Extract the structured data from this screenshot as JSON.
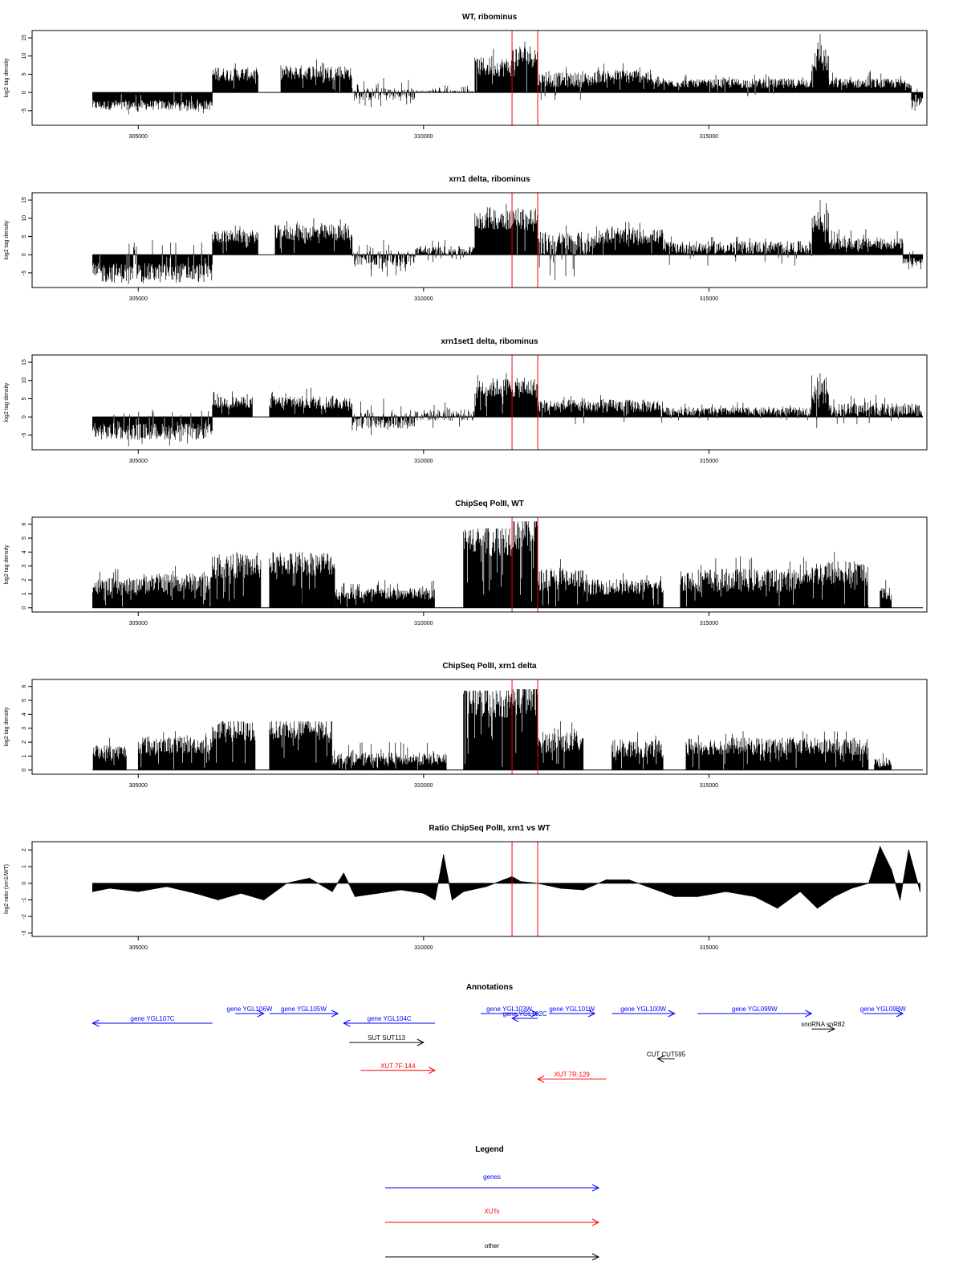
{
  "chart_data": [
    {
      "type": "bar",
      "title": "WT, ribominus",
      "ylabel": "log2 tag density",
      "xlim": [
        303500,
        318800
      ],
      "ylim": [
        -9,
        17
      ],
      "xticks": [
        305000,
        310000,
        315000
      ],
      "yticks": [
        -5,
        0,
        5,
        10,
        15
      ],
      "red_lines_x": [
        311550,
        312000
      ],
      "segments": [
        {
          "x0": 304200,
          "x1": 306300,
          "min": -6,
          "max": 0,
          "base": -3.5
        },
        {
          "x0": 306300,
          "x1": 307100,
          "min": 0,
          "max": 8,
          "base": 5
        },
        {
          "x0": 307500,
          "x1": 308750,
          "min": 0,
          "max": 9,
          "base": 5.5
        },
        {
          "x0": 308750,
          "x1": 309850,
          "min": -4,
          "max": 4,
          "base": -0.5
        },
        {
          "x0": 309850,
          "x1": 310900,
          "min": 0,
          "max": 2,
          "base": 0.2
        },
        {
          "x0": 310900,
          "x1": 311550,
          "min": 0,
          "max": 12,
          "base": 7
        },
        {
          "x0": 311550,
          "x1": 312000,
          "min": 0,
          "max": 14,
          "base": 10
        },
        {
          "x0": 312000,
          "x1": 313000,
          "min": -2,
          "max": 7,
          "base": 3.5
        },
        {
          "x0": 313000,
          "x1": 314000,
          "min": 0,
          "max": 8,
          "base": 4.5
        },
        {
          "x0": 314000,
          "x1": 315200,
          "min": 0,
          "max": 5,
          "base": 2.5
        },
        {
          "x0": 315200,
          "x1": 316800,
          "min": -1,
          "max": 5,
          "base": 2.5
        },
        {
          "x0": 316800,
          "x1": 317100,
          "min": 0,
          "max": 16,
          "base": 9
        },
        {
          "x0": 317100,
          "x1": 318550,
          "min": 0,
          "max": 6,
          "base": 2.5
        },
        {
          "x0": 318550,
          "x1": 318750,
          "min": -5,
          "max": 1,
          "base": -2.5
        }
      ]
    },
    {
      "type": "bar",
      "title": "xrn1 delta, ribominus",
      "ylabel": "log2 tag density",
      "xlim": [
        303500,
        318800
      ],
      "ylim": [
        -9,
        17
      ],
      "xticks": [
        305000,
        310000,
        315000
      ],
      "yticks": [
        -5,
        0,
        5,
        10,
        15
      ],
      "red_lines_x": [
        311550,
        312000
      ],
      "segments": [
        {
          "x0": 304200,
          "x1": 306300,
          "min": -8,
          "max": 4,
          "base": -5
        },
        {
          "x0": 306300,
          "x1": 307100,
          "min": 0,
          "max": 8,
          "base": 5
        },
        {
          "x0": 307400,
          "x1": 308750,
          "min": 0,
          "max": 10,
          "base": 6
        },
        {
          "x0": 308750,
          "x1": 309850,
          "min": -6,
          "max": 4,
          "base": -1
        },
        {
          "x0": 309850,
          "x1": 310900,
          "min": -2,
          "max": 4,
          "base": 1
        },
        {
          "x0": 310900,
          "x1": 312000,
          "min": 0,
          "max": 14,
          "base": 10
        },
        {
          "x0": 312000,
          "x1": 313000,
          "min": -7,
          "max": 8,
          "base": 3
        },
        {
          "x0": 313000,
          "x1": 314200,
          "min": 0,
          "max": 9,
          "base": 5
        },
        {
          "x0": 314200,
          "x1": 316800,
          "min": -3,
          "max": 5,
          "base": 2
        },
        {
          "x0": 316800,
          "x1": 317100,
          "min": 0,
          "max": 15,
          "base": 9
        },
        {
          "x0": 317100,
          "x1": 318400,
          "min": 0,
          "max": 7,
          "base": 3
        },
        {
          "x0": 318400,
          "x1": 318750,
          "min": -4,
          "max": 1,
          "base": -2
        }
      ]
    },
    {
      "type": "bar",
      "title": "xrn1set1 delta, ribominus",
      "ylabel": "log2 tag density",
      "xlim": [
        303500,
        318800
      ],
      "ylim": [
        -9,
        17
      ],
      "xticks": [
        305000,
        310000,
        315000
      ],
      "yticks": [
        -5,
        0,
        5,
        10,
        15
      ],
      "red_lines_x": [
        311550,
        312000
      ],
      "segments": [
        {
          "x0": 304200,
          "x1": 306300,
          "min": -8,
          "max": 2,
          "base": -4
        },
        {
          "x0": 306300,
          "x1": 307000,
          "min": 0,
          "max": 7,
          "base": 4
        },
        {
          "x0": 307300,
          "x1": 308750,
          "min": 0,
          "max": 8,
          "base": 4
        },
        {
          "x0": 308750,
          "x1": 309850,
          "min": -5,
          "max": 5,
          "base": -1
        },
        {
          "x0": 309850,
          "x1": 310900,
          "min": -3,
          "max": 4,
          "base": 0.5
        },
        {
          "x0": 310900,
          "x1": 312000,
          "min": 0,
          "max": 12,
          "base": 8
        },
        {
          "x0": 312000,
          "x1": 314200,
          "min": -2,
          "max": 6,
          "base": 3
        },
        {
          "x0": 314200,
          "x1": 316800,
          "min": -1,
          "max": 4,
          "base": 1.5
        },
        {
          "x0": 316800,
          "x1": 317100,
          "min": -3,
          "max": 12,
          "base": 7
        },
        {
          "x0": 317100,
          "x1": 318750,
          "min": -2,
          "max": 6,
          "base": 2
        }
      ]
    },
    {
      "type": "bar",
      "title": "ChipSeq PolII, WT",
      "ylabel": "log2 tag density",
      "xlim": [
        303500,
        318800
      ],
      "ylim": [
        -0.3,
        6.5
      ],
      "xticks": [
        305000,
        310000,
        315000
      ],
      "yticks": [
        0,
        1,
        2,
        3,
        4,
        5,
        6
      ],
      "red_lines_x": [
        311550,
        312000
      ],
      "segments": [
        {
          "x0": 304200,
          "x1": 305000,
          "min": 0,
          "max": 2.8,
          "base": 1.5
        },
        {
          "x0": 305000,
          "x1": 306300,
          "min": 0,
          "max": 3,
          "base": 1.8
        },
        {
          "x0": 306300,
          "x1": 307150,
          "min": 0,
          "max": 4,
          "base": 3
        },
        {
          "x0": 307300,
          "x1": 308450,
          "min": 0,
          "max": 4,
          "base": 3.2
        },
        {
          "x0": 308450,
          "x1": 310200,
          "min": 0,
          "max": 2,
          "base": 1
        },
        {
          "x0": 310700,
          "x1": 311550,
          "min": 0,
          "max": 5.7,
          "base": 5
        },
        {
          "x0": 311550,
          "x1": 312000,
          "min": 0,
          "max": 6.2,
          "base": 5.5
        },
        {
          "x0": 312000,
          "x1": 312800,
          "min": 0,
          "max": 3.5,
          "base": 2
        },
        {
          "x0": 312800,
          "x1": 314200,
          "min": 0,
          "max": 2.5,
          "base": 1.5
        },
        {
          "x0": 314500,
          "x1": 316600,
          "min": 0,
          "max": 3.7,
          "base": 2
        },
        {
          "x0": 316600,
          "x1": 317800,
          "min": 0,
          "max": 4,
          "base": 2.5
        },
        {
          "x0": 318000,
          "x1": 318200,
          "min": 0,
          "max": 2,
          "base": 1
        }
      ]
    },
    {
      "type": "bar",
      "title": "ChipSeq PolII, xrn1 delta",
      "ylabel": "log2 tag density",
      "xlim": [
        303500,
        318800
      ],
      "ylim": [
        -0.3,
        6.5
      ],
      "xticks": [
        305000,
        310000,
        315000
      ],
      "yticks": [
        0,
        1,
        2,
        3,
        4,
        5,
        6
      ],
      "red_lines_x": [
        311550,
        312000
      ],
      "segments": [
        {
          "x0": 304200,
          "x1": 304800,
          "min": 0,
          "max": 2.3,
          "base": 1.3
        },
        {
          "x0": 305000,
          "x1": 306300,
          "min": 0,
          "max": 2.8,
          "base": 1.8
        },
        {
          "x0": 306300,
          "x1": 307050,
          "min": 0,
          "max": 3.5,
          "base": 2.8
        },
        {
          "x0": 307300,
          "x1": 308400,
          "min": 0,
          "max": 3.5,
          "base": 3
        },
        {
          "x0": 308400,
          "x1": 310400,
          "min": 0,
          "max": 2,
          "base": 0.8
        },
        {
          "x0": 310700,
          "x1": 311550,
          "min": 0,
          "max": 5.7,
          "base": 5
        },
        {
          "x0": 311550,
          "x1": 312000,
          "min": 0,
          "max": 5.8,
          "base": 5.2
        },
        {
          "x0": 312000,
          "x1": 312800,
          "min": 0,
          "max": 3.5,
          "base": 2
        },
        {
          "x0": 313300,
          "x1": 314200,
          "min": 0,
          "max": 2.7,
          "base": 1.5
        },
        {
          "x0": 314600,
          "x1": 316600,
          "min": 0,
          "max": 2.8,
          "base": 1.7
        },
        {
          "x0": 316600,
          "x1": 317800,
          "min": 0,
          "max": 2.8,
          "base": 1.7
        },
        {
          "x0": 317900,
          "x1": 318200,
          "min": 0,
          "max": 1.2,
          "base": 0.5
        }
      ]
    },
    {
      "type": "area",
      "title": "Ratio ChipSeq PolII, xrn1 vs WT",
      "ylabel": "log2 ratio (xrn1/WT)",
      "xlim": [
        303500,
        318800
      ],
      "ylim": [
        -3.2,
        2.5
      ],
      "xticks": [
        305000,
        310000,
        315000
      ],
      "yticks": [
        -3,
        -2,
        -1,
        0,
        1,
        2
      ],
      "red_lines_x": [
        311550,
        312000
      ],
      "x": [
        304200,
        304500,
        305000,
        305500,
        306000,
        306400,
        306800,
        307200,
        307600,
        308000,
        308400,
        308600,
        308800,
        309200,
        309600,
        310000,
        310200,
        310350,
        310500,
        310700,
        311100,
        311550,
        311700,
        312000,
        312400,
        312800,
        313200,
        313600,
        314000,
        314400,
        314800,
        315300,
        315800,
        316200,
        316600,
        316900,
        317200,
        317500,
        317800,
        318000,
        318200,
        318350,
        318500,
        318700
      ],
      "values": [
        -0.5,
        -0.3,
        -0.5,
        -0.2,
        -0.6,
        -1.0,
        -0.6,
        -1.0,
        0.0,
        0.3,
        -0.5,
        0.6,
        -0.8,
        -0.6,
        -0.4,
        -0.6,
        -1.0,
        1.7,
        -1.0,
        -0.5,
        -0.2,
        0.4,
        0.1,
        0.0,
        -0.3,
        -0.4,
        0.2,
        0.2,
        -0.3,
        -0.8,
        -0.8,
        -0.5,
        -0.8,
        -1.5,
        -0.5,
        -1.5,
        -0.8,
        -0.3,
        0.0,
        2.2,
        0.8,
        -1.0,
        2.0,
        -0.5
      ]
    }
  ],
  "annotations": {
    "title": "Annotations",
    "items": [
      {
        "label": "gene YGL107C",
        "color": "#0000ff",
        "x0": 306300,
        "x1": 304200,
        "row": 1
      },
      {
        "label": "gene YGL106W",
        "color": "#0000ff",
        "x0": 306700,
        "x1": 307200,
        "row": 0
      },
      {
        "label": "gene YGL105W",
        "color": "#0000ff",
        "x0": 307300,
        "x1": 308500,
        "row": 0
      },
      {
        "label": "gene YGL104C",
        "color": "#0000ff",
        "x0": 310200,
        "x1": 308600,
        "row": 1
      },
      {
        "label": "gene YGL103W",
        "color": "#0000ff",
        "x0": 311000,
        "x1": 312000,
        "row": 0
      },
      {
        "label": "gene YGL102C",
        "color": "#0000ff",
        "x0": 312000,
        "x1": 311550,
        "row": 0.5
      },
      {
        "label": "gene YGL101W",
        "color": "#0000ff",
        "x0": 312200,
        "x1": 313000,
        "row": 0
      },
      {
        "label": "gene YGL100W",
        "color": "#0000ff",
        "x0": 313300,
        "x1": 314400,
        "row": 0
      },
      {
        "label": "gene YGL099W",
        "color": "#0000ff",
        "x0": 314800,
        "x1": 316800,
        "row": 0
      },
      {
        "label": "gene YGL098W",
        "color": "#0000ff",
        "x0": 317700,
        "x1": 318400,
        "row": 0
      },
      {
        "label": "snoRNA snR82",
        "color": "#000000",
        "x0": 316800,
        "x1": 317200,
        "row": 1.6
      },
      {
        "label": "SUT SUT113",
        "color": "#000000",
        "x0": 308700,
        "x1": 310000,
        "row": 3
      },
      {
        "label": "CUT CUT595",
        "color": "#000000",
        "x0": 314400,
        "x1": 314100,
        "row": 4.7
      },
      {
        "label": "XUT 7F-144",
        "color": "#ff0000",
        "x0": 308900,
        "x1": 310200,
        "row": 5.9
      },
      {
        "label": "XUT 7R-129",
        "color": "#ff0000",
        "x0": 313200,
        "x1": 312000,
        "row": 6.8
      }
    ]
  },
  "legend": {
    "title": "Legend",
    "items": [
      {
        "label": "genes",
        "color": "#0000ff"
      },
      {
        "label": "XUTs",
        "color": "#ff0000"
      },
      {
        "label": "other",
        "color": "#000000"
      }
    ]
  }
}
